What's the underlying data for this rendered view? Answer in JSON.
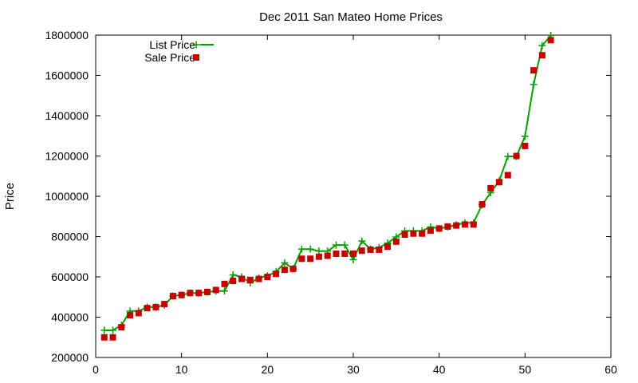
{
  "chart_data": {
    "type": "line",
    "title": "Dec 2011 San Mateo Home Prices",
    "xlabel": "",
    "ylabel": "Price",
    "xlim": [
      0,
      60
    ],
    "ylim": [
      200000,
      1800000
    ],
    "x_ticks": [
      0,
      10,
      20,
      30,
      40,
      50,
      60
    ],
    "y_ticks": [
      200000,
      400000,
      600000,
      800000,
      1000000,
      1200000,
      1400000,
      1600000,
      1800000
    ],
    "grid": false,
    "legend_position": "top-left",
    "x": [
      1,
      2,
      3,
      4,
      5,
      6,
      7,
      8,
      9,
      10,
      11,
      12,
      13,
      14,
      15,
      16,
      17,
      18,
      19,
      20,
      21,
      22,
      23,
      24,
      25,
      26,
      27,
      28,
      29,
      30,
      31,
      32,
      33,
      34,
      35,
      36,
      37,
      38,
      39,
      40,
      41,
      42,
      43,
      44,
      45,
      46,
      47,
      48,
      49,
      50,
      51,
      52,
      53
    ],
    "series": [
      {
        "name": "List Price",
        "style": "line-plus",
        "color": "#00a000",
        "values": [
          335000,
          335000,
          360000,
          430000,
          430000,
          450000,
          450000,
          460000,
          505000,
          510000,
          520000,
          520000,
          525000,
          530000,
          530000,
          610000,
          600000,
          570000,
          595000,
          605000,
          625000,
          670000,
          640000,
          738000,
          738000,
          728000,
          728000,
          758000,
          758000,
          685000,
          778000,
          738000,
          745000,
          768000,
          798000,
          828000,
          828000,
          828000,
          848000,
          840000,
          848000,
          858000,
          868000,
          868000,
          958000,
          1018000,
          1078000,
          1198000,
          1198000,
          1298000,
          1555000,
          1748000,
          1798000
        ]
      },
      {
        "name": "Sale Price",
        "style": "points-square",
        "color": "#c80000",
        "values": [
          300000,
          300000,
          350000,
          410000,
          420000,
          445000,
          450000,
          465000,
          505000,
          510000,
          520000,
          520000,
          525000,
          535000,
          565000,
          580000,
          590000,
          585000,
          590000,
          600000,
          615000,
          635000,
          640000,
          690000,
          690000,
          700000,
          705000,
          715000,
          715000,
          715000,
          730000,
          735000,
          735000,
          750000,
          775000,
          810000,
          815000,
          815000,
          830000,
          840000,
          850000,
          855000,
          860000,
          860000,
          960000,
          1040000,
          1070000,
          1105000,
          1200000,
          1250000,
          1625000,
          1700000,
          1775000
        ]
      }
    ]
  }
}
